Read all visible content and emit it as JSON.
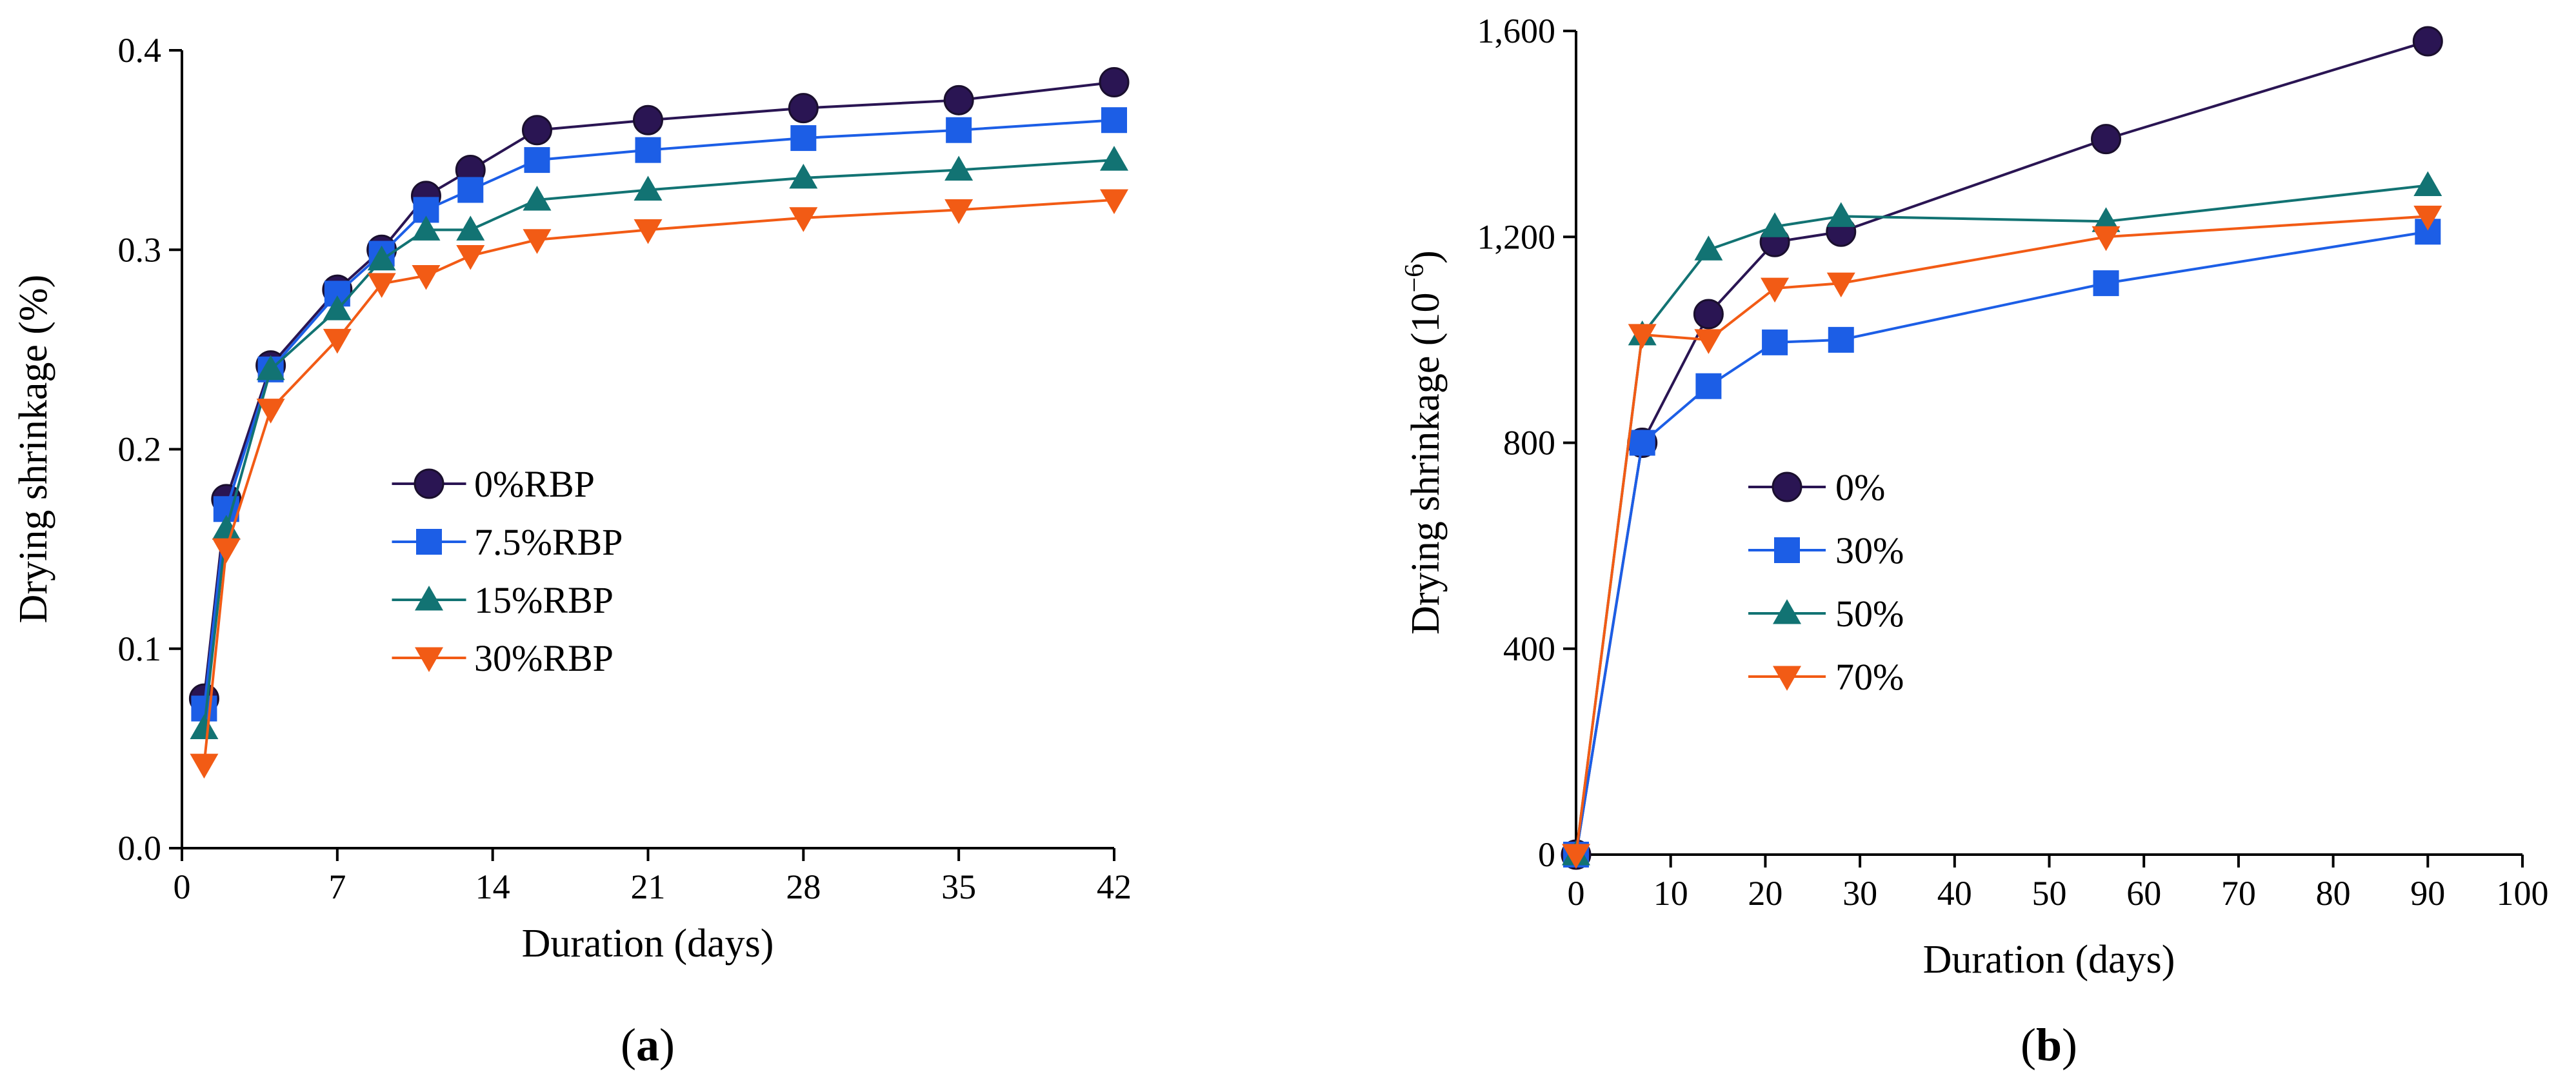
{
  "chart_data": [
    {
      "type": "line",
      "panel_label": "a",
      "title": "",
      "xlabel": "Duration (days)",
      "ylabel": "Drying shrinkage (%)",
      "xlim": [
        0,
        42
      ],
      "ylim": [
        0,
        0.4
      ],
      "xticks": [
        0,
        7,
        14,
        21,
        28,
        35,
        42
      ],
      "yticks": [
        0.0,
        0.1,
        0.2,
        0.3,
        0.4
      ],
      "xtick_labels": [
        "0",
        "7",
        "14",
        "21",
        "28",
        "35",
        "42"
      ],
      "ytick_labels": [
        "0.0",
        "0.1",
        "0.2",
        "0.3",
        "0.4"
      ],
      "legend_position": "center",
      "series": [
        {
          "name": "0%RBP",
          "color": "#2a1553",
          "marker": "circle",
          "x": [
            1,
            2,
            4,
            7,
            9,
            11,
            13,
            16,
            21,
            28,
            35,
            42
          ],
          "y": [
            0.075,
            0.175,
            0.242,
            0.28,
            0.3,
            0.327,
            0.34,
            0.36,
            0.365,
            0.371,
            0.375,
            0.384
          ]
        },
        {
          "name": "7.5%RBP",
          "color": "#1c5ee6",
          "marker": "square",
          "x": [
            1,
            2,
            4,
            7,
            9,
            11,
            13,
            16,
            21,
            28,
            35,
            42
          ],
          "y": [
            0.07,
            0.17,
            0.24,
            0.278,
            0.298,
            0.32,
            0.33,
            0.345,
            0.35,
            0.356,
            0.36,
            0.365
          ]
        },
        {
          "name": "15%RBP",
          "color": "#127373",
          "marker": "triangle-up",
          "x": [
            1,
            2,
            4,
            7,
            9,
            11,
            13,
            16,
            21,
            28,
            35,
            42
          ],
          "y": [
            0.06,
            0.16,
            0.24,
            0.27,
            0.295,
            0.31,
            0.31,
            0.325,
            0.33,
            0.336,
            0.34,
            0.345
          ]
        },
        {
          "name": "30%RBP",
          "color": "#f25b15",
          "marker": "triangle-down",
          "x": [
            1,
            2,
            4,
            7,
            9,
            11,
            13,
            16,
            21,
            28,
            35,
            42
          ],
          "y": [
            0.042,
            0.15,
            0.22,
            0.255,
            0.283,
            0.287,
            0.297,
            0.305,
            0.31,
            0.316,
            0.32,
            0.325
          ]
        }
      ]
    },
    {
      "type": "line",
      "panel_label": "b",
      "title": "",
      "xlabel": "Duration (days)",
      "ylabel": "Drying shrinkage (10",
      "ylabel_superscript": "−6",
      "ylabel_suffix": ")",
      "xlim": [
        0,
        100
      ],
      "ylim": [
        0,
        1600
      ],
      "xticks": [
        0,
        10,
        20,
        30,
        40,
        50,
        60,
        70,
        80,
        90,
        100
      ],
      "yticks": [
        0,
        400,
        800,
        1200,
        1600
      ],
      "xtick_labels": [
        "0",
        "10",
        "20",
        "30",
        "40",
        "50",
        "60",
        "70",
        "80",
        "90",
        "100"
      ],
      "ytick_labels": [
        "0",
        "400",
        "800",
        "1,200",
        "1,600"
      ],
      "legend_position": "center-left",
      "series": [
        {
          "name": "0%",
          "color": "#2a1553",
          "marker": "circle",
          "x": [
            0,
            7,
            14,
            21,
            28,
            56,
            90
          ],
          "y": [
            0,
            800,
            1050,
            1190,
            1210,
            1390,
            1580
          ]
        },
        {
          "name": "30%",
          "color": "#1c5ee6",
          "marker": "square",
          "x": [
            0,
            7,
            14,
            21,
            28,
            56,
            90
          ],
          "y": [
            0,
            800,
            910,
            995,
            1000,
            1110,
            1210
          ]
        },
        {
          "name": "50%",
          "color": "#127373",
          "marker": "triangle-up",
          "x": [
            0,
            7,
            14,
            21,
            28,
            56,
            90
          ],
          "y": [
            0,
            1010,
            1175,
            1220,
            1240,
            1230,
            1300
          ]
        },
        {
          "name": "70%",
          "color": "#f25b15",
          "marker": "triangle-down",
          "x": [
            0,
            7,
            14,
            21,
            28,
            56,
            90
          ],
          "y": [
            0,
            1010,
            1000,
            1100,
            1110,
            1200,
            1240
          ]
        }
      ]
    }
  ]
}
